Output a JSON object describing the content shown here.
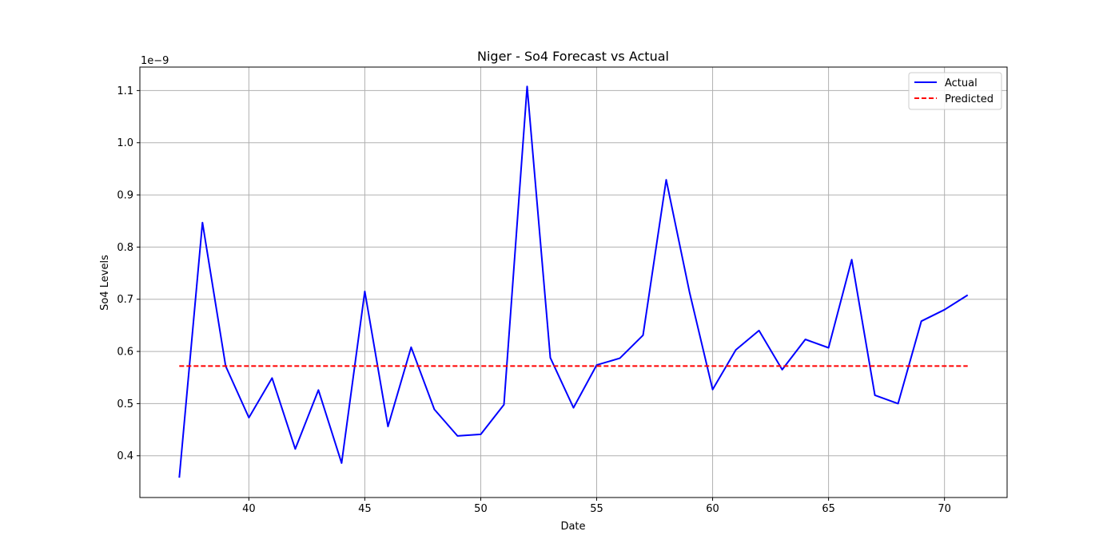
{
  "chart_data": {
    "type": "line",
    "title": "Niger - So4 Forecast vs Actual",
    "xlabel": "Date",
    "ylabel": "So4 Levels",
    "y_scale_note": "1e−9",
    "xlim": [
      35.3,
      72.7
    ],
    "ylim": [
      0.32,
      1.145
    ],
    "x_ticks": [
      40,
      45,
      50,
      55,
      60,
      65,
      70
    ],
    "y_ticks": [
      0.4,
      0.5,
      0.6,
      0.7,
      0.8,
      0.9,
      1.0,
      1.1
    ],
    "y_tick_labels": [
      "0.4",
      "0.5",
      "0.6",
      "0.7",
      "0.8",
      "0.9",
      "1.0",
      "1.1"
    ],
    "grid": true,
    "legend_position": "top-right",
    "series": [
      {
        "name": "Actual",
        "color": "#0000ff",
        "style": "solid",
        "x": [
          37,
          38,
          39,
          40,
          41,
          42,
          43,
          44,
          45,
          46,
          47,
          48,
          49,
          50,
          51,
          52,
          53,
          54,
          55,
          56,
          57,
          58,
          59,
          60,
          61,
          62,
          63,
          64,
          65,
          66,
          67,
          68,
          69,
          70,
          71
        ],
        "values": [
          0.358,
          0.847,
          0.572,
          0.473,
          0.549,
          0.413,
          0.526,
          0.386,
          0.715,
          0.456,
          0.608,
          0.489,
          0.438,
          0.441,
          0.498,
          1.108,
          0.588,
          0.492,
          0.574,
          0.587,
          0.631,
          0.929,
          0.714,
          0.527,
          0.603,
          0.64,
          0.565,
          0.623,
          0.607,
          0.776,
          0.516,
          0.5,
          0.658,
          0.68,
          0.708
        ]
      },
      {
        "name": "Predicted",
        "color": "#ff0000",
        "style": "dashed",
        "x": [
          37,
          38,
          39,
          40,
          41,
          42,
          43,
          44,
          45,
          46,
          47,
          48,
          49,
          50,
          51,
          52,
          53,
          54,
          55,
          56,
          57,
          58,
          59,
          60,
          61,
          62,
          63,
          64,
          65,
          66,
          67,
          68,
          69,
          70,
          71
        ],
        "values": [
          0.572,
          0.572,
          0.572,
          0.572,
          0.572,
          0.572,
          0.572,
          0.572,
          0.572,
          0.572,
          0.572,
          0.572,
          0.572,
          0.572,
          0.572,
          0.572,
          0.572,
          0.572,
          0.572,
          0.572,
          0.572,
          0.572,
          0.572,
          0.572,
          0.572,
          0.572,
          0.572,
          0.572,
          0.572,
          0.572,
          0.572,
          0.572,
          0.572,
          0.572,
          0.572
        ]
      }
    ]
  }
}
